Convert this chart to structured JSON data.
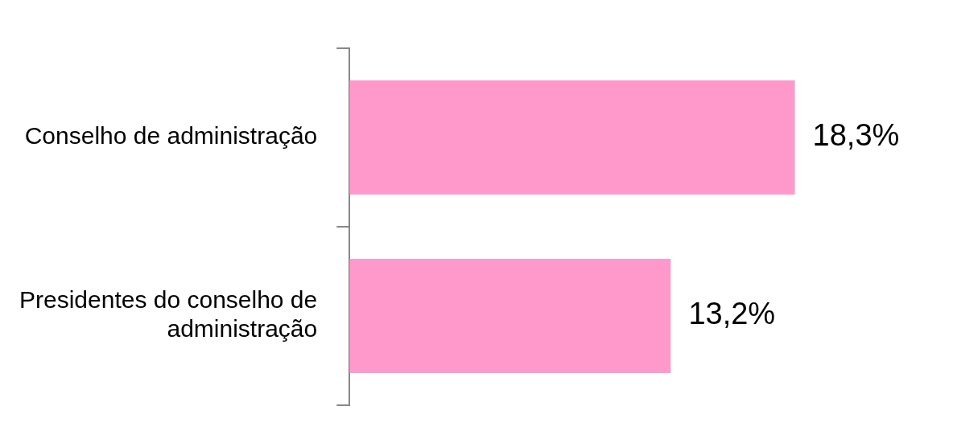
{
  "chart_data": {
    "type": "bar",
    "orientation": "horizontal",
    "categories": [
      "Conselho de administração",
      "Presidentes do conselho de administração"
    ],
    "values": [
      18.3,
      13.2
    ],
    "color": "#ff99cc",
    "value_labels": [
      "18,3%",
      "13,2%"
    ],
    "grid": false,
    "legend": false
  }
}
